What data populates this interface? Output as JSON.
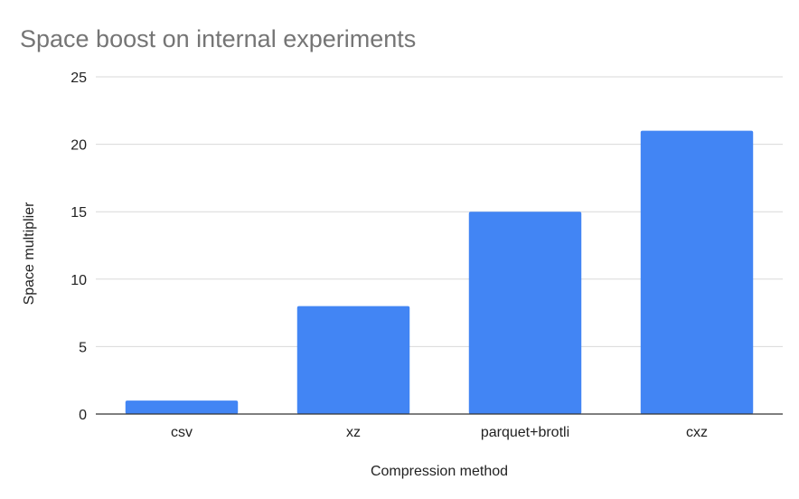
{
  "chart_data": {
    "type": "bar",
    "title": "Space boost on internal experiments",
    "xlabel": "Compression method",
    "ylabel": "Space multiplier",
    "categories": [
      "csv",
      "xz",
      "parquet+brotli",
      "cxz"
    ],
    "values": [
      1,
      8,
      15,
      21
    ],
    "ylim": [
      0,
      25
    ],
    "yticks": [
      0,
      5,
      10,
      15,
      20,
      25
    ],
    "grid": true,
    "legend": "none",
    "bar_color": "#4285f4"
  }
}
